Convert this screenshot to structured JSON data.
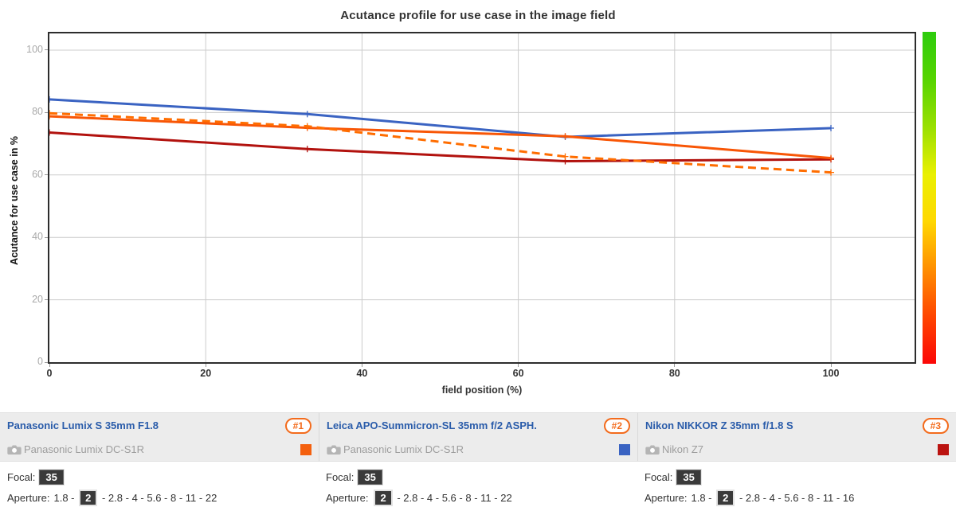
{
  "title": "Acutance profile for use case in the image field",
  "axes": {
    "x_label": "field position (%)",
    "y_label": "Acutance for use case in %",
    "x_ticks": [
      0,
      20,
      40,
      60,
      80,
      100
    ],
    "y_ticks": [
      0,
      20,
      40,
      60,
      80,
      100
    ]
  },
  "chart_data": {
    "type": "line",
    "title": "Acutance profile for use case in the image field",
    "xlabel": "field position (%)",
    "ylabel": "Acutance for use case in %",
    "xlim": [
      0,
      110.7
    ],
    "ylim": [
      0,
      105.35
    ],
    "grid": true,
    "legend_position": "bottom",
    "x": [
      0,
      33,
      66,
      100
    ],
    "series": [
      {
        "name": "Leica APO-Summicron-SL 35mm f/2 ASPH. on Panasonic Lumix DC-S1R",
        "lens_rank": "#2",
        "style": "solid",
        "color": "#3a63c2",
        "values": [
          84.2,
          79.5,
          72.2,
          75.0
        ]
      },
      {
        "name": "Nikon NIKKOR Z 35mm f/1.8 S on Nikon Z7",
        "lens_rank": "#3",
        "style": "solid",
        "color": "#b2120e",
        "values": [
          73.6,
          68.3,
          64.4,
          65.0
        ]
      },
      {
        "name": "Panasonic Lumix S 35mm F1.8 on Panasonic Lumix DC-S1R",
        "lens_rank": "#1",
        "style": "solid",
        "color": "#f85606",
        "values": [
          78.8,
          75.1,
          72.4,
          65.4
        ]
      },
      {
        "name": "Panasonic Lumix S 35mm F1.8 on Panasonic Lumix DC-S1R (dashed)",
        "lens_rank": "#1",
        "style": "dashed",
        "color": "#ff6d00",
        "values": [
          79.8,
          75.6,
          65.9,
          60.8
        ]
      }
    ],
    "colorbar": {
      "position": "right",
      "colors_top_to_bottom": [
        "#2ecc0e",
        "#55d400",
        "#9be000",
        "#eaf000",
        "#ffd800",
        "#ff9100",
        "#ff4400",
        "#fb0707"
      ]
    }
  },
  "lenses": [
    {
      "name": "Panasonic Lumix S 35mm F1.8",
      "rank_badge": "#1",
      "camera": "Panasonic Lumix DC-S1R",
      "swatch_color": "#f4600e",
      "focal_label": "Focal:",
      "focal": "35",
      "aperture_label": "Aperture:",
      "apertures": [
        "1.8",
        "2",
        "2.8",
        "4",
        "5.6",
        "8",
        "11",
        "22"
      ],
      "selected_aperture": "2"
    },
    {
      "name": "Leica APO-Summicron-SL 35mm f/2 ASPH.",
      "rank_badge": "#2",
      "camera": "Panasonic Lumix DC-S1R",
      "swatch_color": "#3a63c2",
      "focal_label": "Focal:",
      "focal": "35",
      "aperture_label": "Aperture:",
      "apertures": [
        "2",
        "2.8",
        "4",
        "5.6",
        "8",
        "11",
        "22"
      ],
      "selected_aperture": "2"
    },
    {
      "name": "Nikon NIKKOR Z 35mm f/1.8 S",
      "rank_badge": "#3",
      "camera": "Nikon Z7",
      "swatch_color": "#bb1310",
      "focal_label": "Focal:",
      "focal": "35",
      "aperture_label": "Aperture:",
      "apertures": [
        "1.8",
        "2",
        "2.8",
        "4",
        "5.6",
        "8",
        "11",
        "16"
      ],
      "selected_aperture": "2"
    }
  ],
  "colors": {
    "accent_orange": "#f36b1c",
    "link_blue": "#2a5caa",
    "grid": "#cccccc",
    "plot_border": "#2d2d2d",
    "y_tick_text": "#a9a9a9",
    "x_tick_text": "#333333",
    "legend_header_bg": "#ececec"
  },
  "separator": " - "
}
